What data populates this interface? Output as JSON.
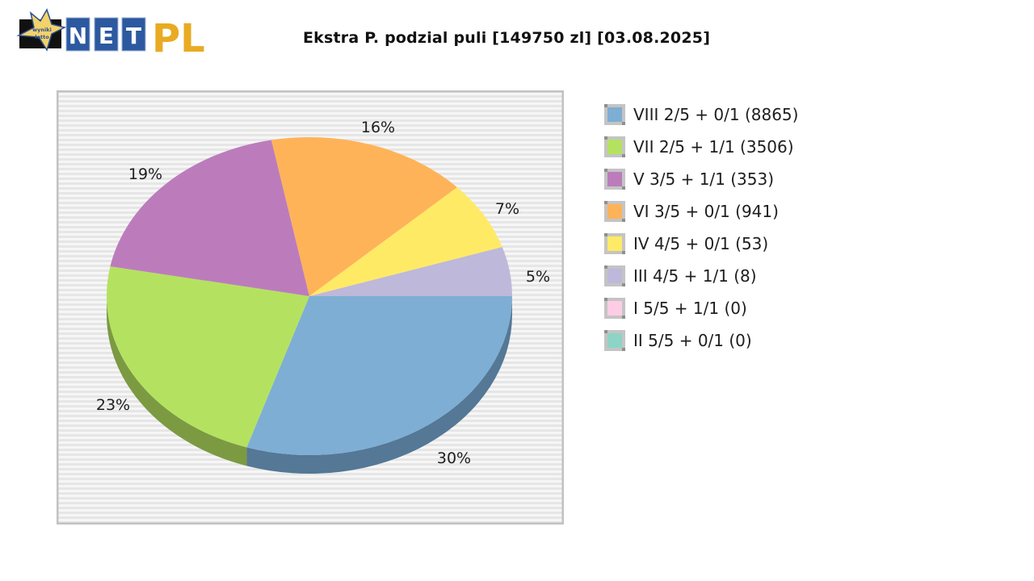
{
  "header": {
    "logo": {
      "badge_text": [
        "wyniki",
        "lotto"
      ],
      "letters": [
        "N",
        "E",
        "T"
      ],
      "suffix": "PL"
    },
    "title": "Ekstra P. podzial puli [149750 zl] [03.08.2025]"
  },
  "chart_data": {
    "type": "pie",
    "title": "Ekstra P. podzial puli [149750 zl] [03.08.2025]",
    "style": "3d-ellipse",
    "legend_position": "right",
    "background": "horizontal-striped",
    "slices": [
      {
        "legend": "VIII 2/5 + 0/1 (8865)",
        "tier": "VIII",
        "match": "2/5 + 0/1",
        "winners": 8865,
        "percent": 30,
        "label": "30%",
        "color": "#7eaed4",
        "side_color": "#547895"
      },
      {
        "legend": "VII 2/5 + 1/1 (3506)",
        "tier": "VII",
        "match": "2/5 + 1/1",
        "winners": 3506,
        "percent": 23,
        "label": "23%",
        "color": "#b4e260",
        "side_color": "#7b9a42"
      },
      {
        "legend": "V 3/5 + 1/1 (353)",
        "tier": "V",
        "match": "3/5 + 1/1",
        "winners": 353,
        "percent": 19,
        "label": "19%",
        "color": "#bc7cbc",
        "side_color": "#835683"
      },
      {
        "legend": "VI 3/5 + 0/1 (941)",
        "tier": "VI",
        "match": "3/5 + 0/1",
        "winners": 941,
        "percent": 16,
        "label": "16%",
        "color": "#feb359",
        "side_color": "#b07d3e"
      },
      {
        "legend": "IV 4/5 + 0/1 (53)",
        "tier": "IV",
        "match": "4/5 + 0/1",
        "winners": 53,
        "percent": 7,
        "label": "7%",
        "color": "#ffea66",
        "side_color": "#b1a347"
      },
      {
        "legend": "III 4/5 + 1/1 (8)",
        "tier": "III",
        "match": "4/5 + 1/1",
        "winners": 8,
        "percent": 5,
        "label": "5%",
        "color": "#beb8da",
        "side_color": "#847f98"
      },
      {
        "legend": "I 5/5 + 1/1 (0)",
        "tier": "I",
        "match": "5/5 + 1/1",
        "winners": 0,
        "percent": 0,
        "label": "",
        "color": "#ffcce6",
        "side_color": "#b08ea0"
      },
      {
        "legend": "II 5/5 + 0/1 (0)",
        "tier": "II",
        "match": "5/5 + 0/1",
        "winners": 0,
        "percent": 0,
        "label": "",
        "color": "#8dd4c6",
        "side_color": "#62938a"
      }
    ]
  }
}
